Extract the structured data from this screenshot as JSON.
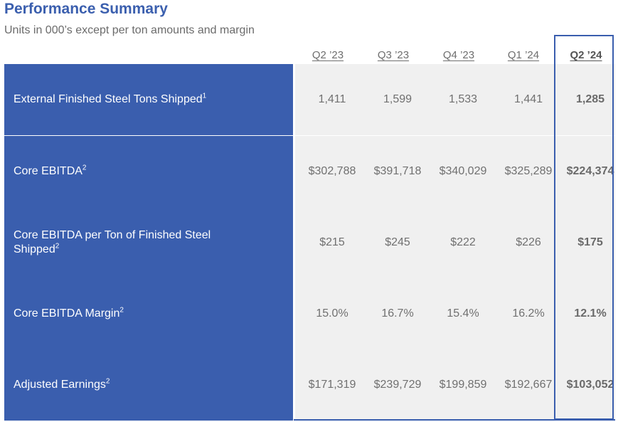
{
  "header": {
    "title": "Performance Summary",
    "subtitle": "Units in 000’s except per ton amounts and margin"
  },
  "columns": [
    "Q2 ’23",
    "Q3 ’23",
    "Q4 ’23",
    "Q1 ’24",
    "Q2 ’24"
  ],
  "rows": [
    {
      "label": "External Finished Steel Tons Shipped",
      "footnote": "1",
      "values": [
        "1,411",
        "1,599",
        "1,533",
        "1,441",
        "1,285"
      ]
    },
    {
      "label": "Core EBITDA",
      "footnote": "2",
      "values": [
        "$302,788",
        "$391,718",
        "$340,029",
        "$325,289",
        "$224,374"
      ]
    },
    {
      "label": "Core EBITDA per Ton of Finished Steel Shipped",
      "footnote": "2",
      "values": [
        "$215",
        "$245",
        "$222",
        "$226",
        "$175"
      ]
    },
    {
      "label": "Core EBITDA Margin",
      "footnote": "2",
      "values": [
        "15.0%",
        "16.7%",
        "15.4%",
        "16.2%",
        "12.1%"
      ]
    },
    {
      "label": "Adjusted Earnings",
      "footnote": "2",
      "values": [
        "$171,319",
        "$239,729",
        "$199,859",
        "$192,667",
        "$103,052"
      ]
    }
  ],
  "colors": {
    "accent": "#3a5eae",
    "title": "#3b5fae",
    "cell_bg": "#f0f0f0"
  }
}
